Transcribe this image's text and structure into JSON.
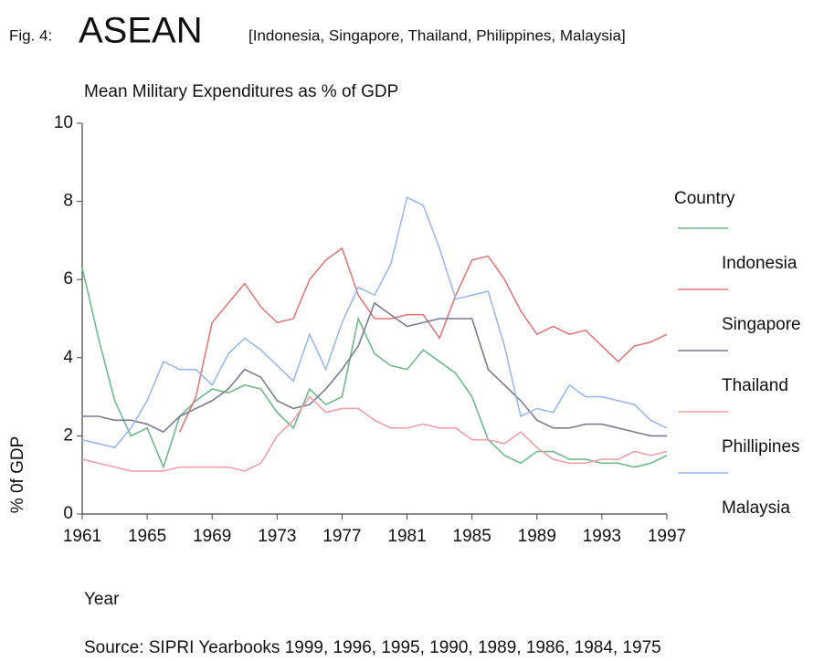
{
  "chart_data": {
    "type": "line",
    "fig_label": "Fig. 4:",
    "title": "ASEAN",
    "title_note": "[Indonesia, Singapore, Thailand, Philippines, Malaysia]",
    "subtitle": "Mean Military Expenditures as % of GDP",
    "xlabel": "Year",
    "ylabel": "% 0f GDP",
    "legend_title": "Country",
    "source": "Source: SIPRI Yearbooks 1999, 1996, 1995, 1990, 1989, 1986, 1984, 1975",
    "x": [
      1961,
      1962,
      1963,
      1964,
      1965,
      1966,
      1967,
      1968,
      1969,
      1970,
      1971,
      1972,
      1973,
      1974,
      1975,
      1976,
      1977,
      1978,
      1979,
      1980,
      1981,
      1982,
      1983,
      1984,
      1985,
      1986,
      1987,
      1988,
      1989,
      1990,
      1991,
      1992,
      1993,
      1994,
      1995,
      1996,
      1997
    ],
    "xlim": [
      1961,
      1997
    ],
    "xticks": [
      1961,
      1965,
      1969,
      1973,
      1977,
      1981,
      1985,
      1989,
      1993,
      1997
    ],
    "ylim": [
      0,
      10
    ],
    "yticks": [
      0,
      2,
      4,
      6,
      8,
      10
    ],
    "series": [
      {
        "name": "Indonesia",
        "color": "#6fb98a",
        "values": [
          6.3,
          4.5,
          2.9,
          2.0,
          2.2,
          1.2,
          2.5,
          2.9,
          3.2,
          3.1,
          3.3,
          3.2,
          2.6,
          2.2,
          3.2,
          2.8,
          3.0,
          5.0,
          4.1,
          3.8,
          3.7,
          4.2,
          3.9,
          3.6,
          3.0,
          1.9,
          1.5,
          1.3,
          1.6,
          1.6,
          1.4,
          1.4,
          1.3,
          1.3,
          1.2,
          1.3,
          1.5
        ]
      },
      {
        "name": "Singapore",
        "color": "#e07a7a",
        "values": [
          null,
          null,
          null,
          null,
          null,
          null,
          2.1,
          3.0,
          4.9,
          5.4,
          5.9,
          5.3,
          4.9,
          5.0,
          6.0,
          6.5,
          6.8,
          5.6,
          5.0,
          5.0,
          5.1,
          5.1,
          4.5,
          5.6,
          6.5,
          6.6,
          6.0,
          5.2,
          4.6,
          4.8,
          4.6,
          4.7,
          4.3,
          3.9,
          4.3,
          4.4,
          4.6
        ]
      },
      {
        "name": "Thailand",
        "color": "#7a7a90",
        "values": [
          2.5,
          2.5,
          2.4,
          2.4,
          2.3,
          2.1,
          2.5,
          2.7,
          2.9,
          3.2,
          3.7,
          3.5,
          2.9,
          2.7,
          2.8,
          3.2,
          3.7,
          4.3,
          5.4,
          5.1,
          4.8,
          4.9,
          5.0,
          5.0,
          5.0,
          3.7,
          3.3,
          2.9,
          2.4,
          2.2,
          2.2,
          2.3,
          2.3,
          2.2,
          2.1,
          2.0,
          2.0
        ]
      },
      {
        "name": "Phillipines",
        "color": "#f0a0a8",
        "values": [
          1.4,
          1.3,
          1.2,
          1.1,
          1.1,
          1.1,
          1.2,
          1.2,
          1.2,
          1.2,
          1.1,
          1.3,
          2.0,
          2.4,
          3.0,
          2.6,
          2.7,
          2.7,
          2.4,
          2.2,
          2.2,
          2.3,
          2.2,
          2.2,
          1.9,
          1.9,
          1.8,
          2.1,
          1.7,
          1.4,
          1.3,
          1.3,
          1.4,
          1.4,
          1.6,
          1.5,
          1.6
        ]
      },
      {
        "name": "Malaysia",
        "color": "#9ab8ee",
        "values": [
          1.9,
          1.8,
          1.7,
          2.2,
          2.9,
          3.9,
          3.7,
          3.7,
          3.3,
          4.1,
          4.5,
          4.2,
          3.8,
          3.4,
          4.6,
          3.7,
          4.9,
          5.8,
          5.6,
          6.4,
          8.1,
          7.9,
          6.8,
          5.5,
          5.6,
          5.7,
          4.3,
          2.5,
          2.7,
          2.6,
          3.3,
          3.0,
          3.0,
          2.9,
          2.8,
          2.4,
          2.2
        ]
      }
    ]
  }
}
